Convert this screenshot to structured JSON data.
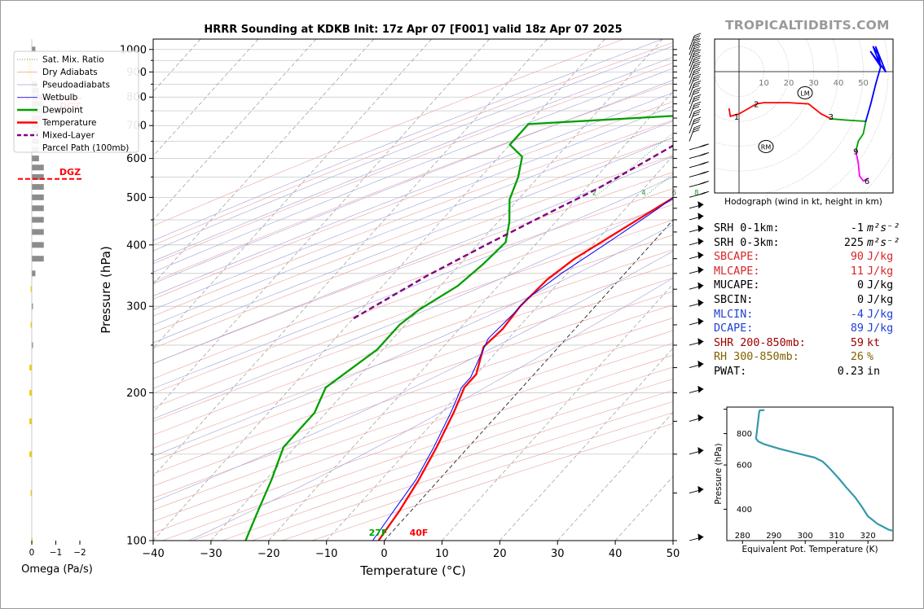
{
  "brand": "TROPICALTIDBITS.COM",
  "skewt": {
    "title": "HRRR Sounding at KDKB Init: 17z Apr 07 [F001] valid 18z Apr 07 2025",
    "xlabel": "Temperature (°C)",
    "ylabel": "Pressure (hPa)",
    "xticks": [
      -40,
      -30,
      -20,
      -10,
      0,
      10,
      20,
      30,
      40,
      50
    ],
    "xtick_labels": [
      "−40",
      "−30",
      "−20",
      "−10",
      "0",
      "10",
      "20",
      "30",
      "40",
      "50"
    ],
    "pticks": [
      100,
      200,
      300,
      400,
      500,
      600,
      700,
      800,
      900,
      1000
    ],
    "pressure_lines": [
      100,
      150,
      200,
      250,
      300,
      350,
      400,
      450,
      500,
      550,
      600,
      650,
      700,
      750,
      800,
      850,
      900,
      950,
      1000
    ],
    "xlim": [
      -40,
      50
    ],
    "plim": [
      1050,
      100
    ],
    "sfc_temp_label": "40F",
    "sfc_dewpoint_label": "27F",
    "mixing_ratio_labels": [
      "2",
      "4",
      "6",
      "8",
      "10",
      "13",
      "16",
      "20",
      "24",
      "30",
      "36"
    ],
    "colors": {
      "temperature": "#ff0000",
      "dewpoint": "#00a000",
      "wetbulb": "#0000ff",
      "parcel": "#800080"
    },
    "legend": [
      {
        "label": "Sat. Mix. Ratio",
        "style": "dotted",
        "color": "#555555"
      },
      {
        "label": "Dry Adiabats",
        "style": "solid",
        "color": "#e8a0a0"
      },
      {
        "label": "Pseudoadiabats",
        "style": "solid",
        "color": "#a0a0d8"
      },
      {
        "label": "Wetbulb",
        "style": "solid",
        "color": "#0000ff"
      },
      {
        "label": "Dewpoint",
        "style": "solid",
        "color": "#00a000"
      },
      {
        "label": "Temperature",
        "style": "solid",
        "color": "#ff0000"
      },
      {
        "label": "Mixed-Layer",
        "style": "dashed",
        "color": "#800080"
      },
      {
        "label": "Parcel Path (100mb)",
        "style": "none",
        "color": "#800080"
      }
    ]
  },
  "omega": {
    "xlabel": "Omega (Pa/s)",
    "xticks": [
      0,
      -1,
      -2
    ],
    "xtick_labels": [
      "0",
      "−1",
      "−2"
    ],
    "dgz_label": "DGZ",
    "dgz_top_hpa": 545,
    "dgz_bottom_hpa": 795
  },
  "hodograph": {
    "caption": "Hodograph (wind in kt, height in km)",
    "ring_labels": [
      "10",
      "20",
      "30",
      "40",
      "50"
    ],
    "height_labels": [
      "1",
      "2",
      "3",
      "9",
      "6"
    ],
    "lm_label": "LM",
    "rm_label": "RM"
  },
  "indices": [
    {
      "label": "SRH 0-1km:",
      "value": "-1",
      "unit": "m²s⁻²",
      "color": "#000000"
    },
    {
      "label": "SRH 0-3km:",
      "value": "225",
      "unit": "m²s⁻²",
      "color": "#000000"
    },
    {
      "label": "SBCAPE:",
      "value": "90",
      "unit": "J/kg",
      "color": "#d62728"
    },
    {
      "label": "MLCAPE:",
      "value": "11",
      "unit": "J/kg",
      "color": "#d62728"
    },
    {
      "label": "MUCAPE:",
      "value": "0",
      "unit": "J/kg",
      "color": "#000000"
    },
    {
      "label": "SBCIN:",
      "value": "0",
      "unit": "J/kg",
      "color": "#000000"
    },
    {
      "label": "MLCIN:",
      "value": "-4",
      "unit": "J/kg",
      "color": "#1f3fd6"
    },
    {
      "label": "DCAPE:",
      "value": "89",
      "unit": "J/kg",
      "color": "#1f3fd6"
    },
    {
      "label": "SHR 200-850mb:",
      "value": "59",
      "unit": "kt",
      "color": "#a00000"
    },
    {
      "label": "RH 300-850mb:",
      "value": "26",
      "unit": "%",
      "color": "#806000"
    },
    {
      "label": "PWAT:",
      "value": "0.23",
      "unit": "in",
      "color": "#000000"
    }
  ],
  "theta_e": {
    "xlabel": "Equivalent Pot. Temperature (K)",
    "ylabel": "Pressure (hPa)",
    "xticks": [
      280,
      290,
      300,
      310,
      320
    ],
    "yticks": [
      400,
      600,
      800
    ],
    "xlim": [
      275,
      328
    ],
    "plim": [
      1020,
      300
    ]
  },
  "chart_data": [
    {
      "type": "line",
      "title": "HRRR Sounding at KDKB Init: 17z Apr 07 [F001] valid 18z Apr 07 2025",
      "xlabel": "Temperature (°C)",
      "ylabel": "Pressure (hPa)",
      "xlim": [
        -40,
        50
      ],
      "ylim": [
        1050,
        100
      ],
      "grid": true,
      "legend_position": "top-left",
      "series": [
        {
          "name": "Temperature",
          "points": [
            [
              5,
              985
            ],
            [
              2,
              960
            ],
            [
              -1,
              900
            ],
            [
              -4,
              810
            ],
            [
              -6,
              760
            ],
            [
              -5,
              735
            ],
            [
              -1,
              700
            ],
            [
              2,
              660
            ],
            [
              2,
              620
            ],
            [
              0.5,
              570
            ],
            [
              -2,
              525
            ],
            [
              -4.5,
              480
            ],
            [
              -8,
              420
            ],
            [
              -11,
              375
            ],
            [
              -12.5,
              340
            ],
            [
              -13,
              300
            ],
            [
              -12.5,
              270
            ],
            [
              -13,
              248
            ],
            [
              -10,
              218
            ],
            [
              -10,
              205
            ],
            [
              -8,
              183
            ],
            [
              -5.5,
              155
            ],
            [
              -3.5,
              133
            ],
            [
              -2,
              115
            ],
            [
              -1,
              100
            ]
          ]
        },
        {
          "name": "Wetbulb",
          "points": [
            [
              1,
              975
            ],
            [
              -1,
              940
            ],
            [
              -3,
              900
            ],
            [
              -5,
              810
            ],
            [
              -6,
              760
            ],
            [
              -4.5,
              720
            ],
            [
              -3,
              690
            ],
            [
              -1.5,
              650
            ],
            [
              -1,
              610
            ],
            [
              -1.8,
              560
            ],
            [
              -3,
              510
            ],
            [
              -5,
              460
            ],
            [
              -8,
              400
            ],
            [
              -11,
              350
            ],
            [
              -13,
              310
            ],
            [
              -13,
              290
            ],
            [
              -13.5,
              258
            ],
            [
              -10.5,
              215
            ],
            [
              -10.5,
              205
            ],
            [
              -8.5,
              183
            ],
            [
              -6,
              155
            ],
            [
              -4,
              133
            ],
            [
              -3,
              115
            ],
            [
              -2,
              100
            ]
          ]
        },
        {
          "name": "Dewpoint",
          "points": [
            [
              -3,
              985
            ],
            [
              -3,
              960
            ],
            [
              -4,
              900
            ],
            [
              -6,
              850
            ],
            [
              -9,
              770
            ],
            [
              -14,
              735
            ],
            [
              -40,
              705
            ],
            [
              -40,
              640
            ],
            [
              -36,
              605
            ],
            [
              -33.5,
              550
            ],
            [
              -31.5,
              495
            ],
            [
              -28,
              445
            ],
            [
              -25.5,
              405
            ],
            [
              -26,
              365
            ],
            [
              -27,
              330
            ],
            [
              -30,
              295
            ],
            [
              -31,
              275
            ],
            [
              -31,
              245
            ],
            [
              -34,
              205
            ],
            [
              -32,
              182
            ],
            [
              -32,
              155
            ],
            [
              -29,
              133
            ],
            [
              -26.5,
              115
            ],
            [
              -24,
              100
            ]
          ]
        },
        {
          "name": "Mixed-Layer Parcel Path (100mb)",
          "points": [
            [
              -1,
              950
            ],
            [
              -3.5,
              850
            ],
            [
              -6,
              760
            ],
            [
              -10,
              670
            ],
            [
              -14,
              590
            ],
            [
              -18,
              520
            ],
            [
              -23,
              460
            ],
            [
              -28.5,
              400
            ],
            [
              -34,
              345
            ],
            [
              -40,
              283
            ]
          ]
        }
      ]
    },
    {
      "type": "line",
      "xlabel": "Equivalent Pot. Temperature (K)",
      "ylabel": "Pressure (hPa)",
      "xlim": [
        275,
        328
      ],
      "ylim": [
        1020,
        300
      ],
      "grid": false,
      "series": [
        {
          "name": "Theta-E",
          "points": [
            [
              287,
              992
            ],
            [
              285.5,
              990
            ],
            [
              285.3,
              970
            ],
            [
              285,
              900
            ],
            [
              284.5,
              800
            ],
            [
              284.3,
              765
            ],
            [
              285,
              745
            ],
            [
              287,
              725
            ],
            [
              292,
              695
            ],
            [
              298,
              665
            ],
            [
              303,
              642
            ],
            [
              305.5,
              620
            ],
            [
              307,
              595
            ],
            [
              309,
              560
            ],
            [
              311,
              525
            ],
            [
              313,
              490
            ],
            [
              316,
              445
            ],
            [
              318,
              410
            ],
            [
              320,
              375
            ],
            [
              323,
              350
            ],
            [
              326.5,
              332
            ],
            [
              328,
              328
            ]
          ]
        }
      ]
    },
    {
      "type": "scatter",
      "xlabel": "",
      "ylabel": "",
      "grid": true,
      "series": [
        {
          "name": "Hodograph",
          "points": [
            [
              -4,
              -15
            ],
            [
              -3.5,
              -18
            ],
            [
              0,
              -17
            ],
            [
              7,
              -13
            ],
            [
              10,
              -12.5
            ],
            [
              20,
              -12.5
            ],
            [
              28,
              -13
            ],
            [
              33,
              -17
            ],
            [
              37,
              -19
            ],
            [
              43,
              -19.5
            ],
            [
              51,
              -20
            ],
            [
              50,
              -25
            ],
            [
              48,
              -28
            ],
            [
              47,
              -32
            ],
            [
              48,
              -37
            ],
            [
              48.5,
              -42
            ],
            [
              50,
              -44
            ],
            [
              52,
              -43
            ]
          ]
        }
      ]
    }
  ]
}
